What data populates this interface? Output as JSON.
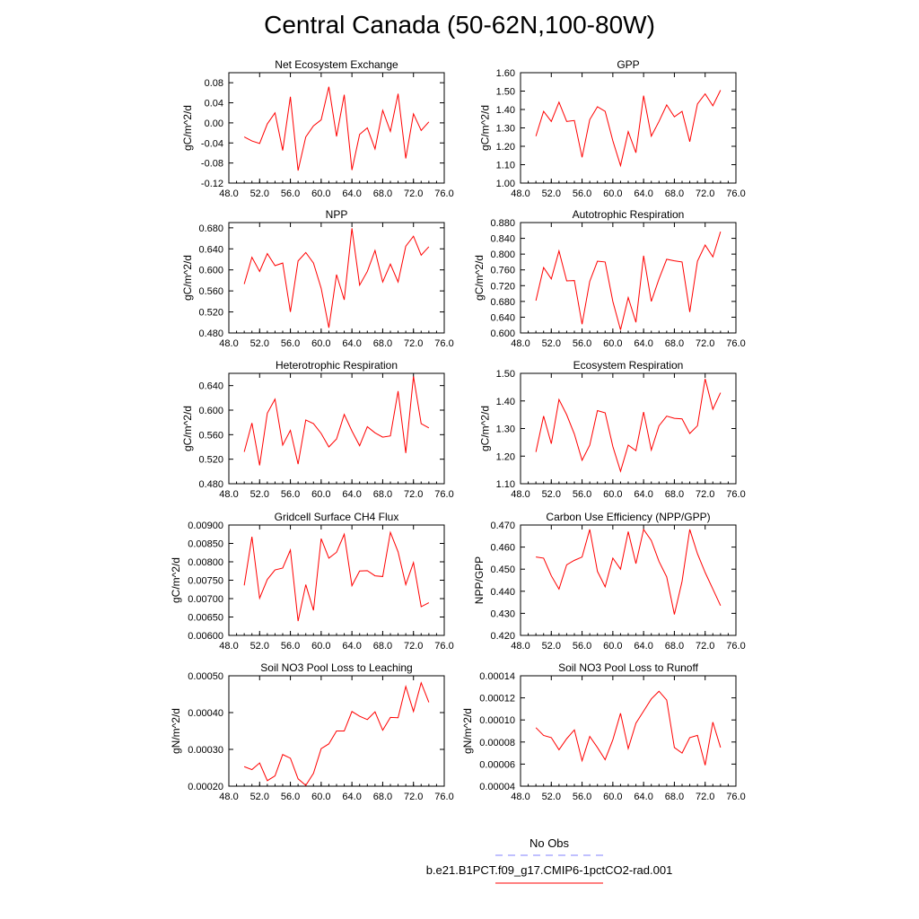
{
  "title": "Central Canada (50-62N,100-80W)",
  "legend": {
    "entries": [
      {
        "label": "No Obs",
        "color": "#8080ff",
        "style": "dashed"
      },
      {
        "label": "b.e21.B1PCT.f09_g17.CMIP6-1pctCO2-rad.001",
        "color": "#ff0000",
        "style": "solid"
      }
    ]
  },
  "chart_data": [
    {
      "type": "line",
      "title": "Net Ecosystem Exchange",
      "ylabel": "gC/m^2/d",
      "xlabel": "",
      "xlim": [
        48,
        76
      ],
      "ylim": [
        -0.12,
        0.1
      ],
      "xticks": [
        "48.0",
        "52.0",
        "56.0",
        "60.0",
        "64.0",
        "68.0",
        "72.0",
        "76.0"
      ],
      "yticks": [
        "-0.12",
        "-0.08",
        "-0.04",
        "0.00",
        "0.04",
        "0.08"
      ],
      "line_color": "#ff0000",
      "x": [
        50,
        51,
        52,
        53,
        54,
        55,
        56,
        57,
        58,
        59,
        60,
        61,
        62,
        63,
        64,
        65,
        66,
        67,
        68,
        69,
        70,
        71,
        72,
        73,
        74
      ],
      "y": [
        -0.028,
        -0.036,
        -0.041,
        -0.002,
        0.02,
        -0.055,
        0.052,
        -0.095,
        -0.028,
        -0.006,
        0.006,
        0.072,
        -0.027,
        0.056,
        -0.094,
        -0.023,
        -0.01,
        -0.052,
        0.025,
        -0.017,
        0.058,
        -0.071,
        0.018,
        -0.015,
        0.002
      ],
      "series": [
        {
          "values": [
            -0.028,
            -0.036,
            -0.041,
            -0.002,
            0.02,
            -0.055,
            0.052,
            -0.095,
            -0.028,
            -0.006,
            0.006,
            0.072,
            -0.027,
            0.056,
            -0.094,
            -0.023,
            -0.01,
            -0.052,
            0.025,
            -0.017,
            0.058,
            -0.071,
            0.018,
            -0.015,
            0.002
          ]
        }
      ],
      "grid": false
    },
    {
      "type": "line",
      "title": "GPP",
      "ylabel": "gC/m^2/d",
      "xlabel": "",
      "xlim": [
        48,
        76
      ],
      "ylim": [
        1.0,
        1.6
      ],
      "xticks": [
        "48.0",
        "52.0",
        "56.0",
        "60.0",
        "64.0",
        "68.0",
        "72.0",
        "76.0"
      ],
      "yticks": [
        "1.00",
        "1.10",
        "1.20",
        "1.30",
        "1.40",
        "1.50",
        "1.60"
      ],
      "line_color": "#ff0000",
      "x": [
        50,
        51,
        52,
        53,
        54,
        55,
        56,
        57,
        58,
        59,
        60,
        61,
        62,
        63,
        64,
        65,
        66,
        67,
        68,
        69,
        70,
        71,
        72,
        73,
        74
      ],
      "y": [
        1.255,
        1.39,
        1.335,
        1.44,
        1.335,
        1.34,
        1.14,
        1.345,
        1.415,
        1.39,
        1.23,
        1.095,
        1.28,
        1.165,
        1.475,
        1.255,
        1.335,
        1.425,
        1.36,
        1.39,
        1.225,
        1.43,
        1.485,
        1.42,
        1.505
      ],
      "series": [
        {
          "values": [
            1.255,
            1.39,
            1.335,
            1.44,
            1.335,
            1.34,
            1.14,
            1.345,
            1.415,
            1.39,
            1.23,
            1.095,
            1.28,
            1.165,
            1.475,
            1.255,
            1.335,
            1.425,
            1.36,
            1.39,
            1.225,
            1.43,
            1.485,
            1.42,
            1.505
          ]
        }
      ],
      "grid": false
    },
    {
      "type": "line",
      "title": "NPP",
      "ylabel": "gC/m^2/d",
      "xlabel": "",
      "xlim": [
        48,
        76
      ],
      "ylim": [
        0.48,
        0.69
      ],
      "xticks": [
        "48.0",
        "52.0",
        "56.0",
        "60.0",
        "64.0",
        "68.0",
        "72.0",
        "76.0"
      ],
      "yticks": [
        "0.480",
        "0.520",
        "0.560",
        "0.600",
        "0.640",
        "0.680"
      ],
      "line_color": "#ff0000",
      "x": [
        50,
        51,
        52,
        53,
        54,
        55,
        56,
        57,
        58,
        59,
        60,
        61,
        62,
        63,
        64,
        65,
        66,
        67,
        68,
        69,
        70,
        71,
        72,
        73,
        74
      ],
      "y": [
        0.573,
        0.624,
        0.597,
        0.631,
        0.608,
        0.613,
        0.52,
        0.617,
        0.633,
        0.613,
        0.565,
        0.49,
        0.591,
        0.543,
        0.679,
        0.571,
        0.597,
        0.637,
        0.577,
        0.611,
        0.577,
        0.645,
        0.664,
        0.628,
        0.644
      ],
      "series": [
        {
          "values": [
            0.573,
            0.624,
            0.597,
            0.631,
            0.608,
            0.613,
            0.52,
            0.617,
            0.633,
            0.613,
            0.565,
            0.49,
            0.591,
            0.543,
            0.679,
            0.571,
            0.597,
            0.637,
            0.577,
            0.611,
            0.577,
            0.645,
            0.664,
            0.628,
            0.644
          ]
        }
      ],
      "grid": false
    },
    {
      "type": "line",
      "title": "Autotrophic Respiration",
      "ylabel": "gC/m^2/d",
      "xlabel": "",
      "xlim": [
        48,
        76
      ],
      "ylim": [
        0.6,
        0.88
      ],
      "xticks": [
        "48.0",
        "52.0",
        "56.0",
        "60.0",
        "64.0",
        "68.0",
        "72.0",
        "76.0"
      ],
      "yticks": [
        "0.600",
        "0.640",
        "0.680",
        "0.720",
        "0.760",
        "0.800",
        "0.840",
        "0.880"
      ],
      "line_color": "#ff0000",
      "x": [
        50,
        51,
        52,
        53,
        54,
        55,
        56,
        57,
        58,
        59,
        60,
        61,
        62,
        63,
        64,
        65,
        66,
        67,
        68,
        69,
        70,
        71,
        72,
        73,
        74
      ],
      "y": [
        0.682,
        0.766,
        0.737,
        0.808,
        0.732,
        0.733,
        0.622,
        0.731,
        0.782,
        0.78,
        0.68,
        0.608,
        0.69,
        0.627,
        0.796,
        0.68,
        0.737,
        0.787,
        0.783,
        0.78,
        0.653,
        0.782,
        0.823,
        0.793,
        0.857
      ],
      "series": [
        {
          "values": [
            0.682,
            0.766,
            0.737,
            0.808,
            0.732,
            0.733,
            0.622,
            0.731,
            0.782,
            0.78,
            0.68,
            0.608,
            0.69,
            0.627,
            0.796,
            0.68,
            0.737,
            0.787,
            0.783,
            0.78,
            0.653,
            0.782,
            0.823,
            0.793,
            0.857
          ]
        }
      ],
      "grid": false
    },
    {
      "type": "line",
      "title": "Heterotrophic Respiration",
      "ylabel": "gC/m^2/d",
      "xlabel": "",
      "xlim": [
        48,
        76
      ],
      "ylim": [
        0.48,
        0.66
      ],
      "xticks": [
        "48.0",
        "52.0",
        "56.0",
        "60.0",
        "64.0",
        "68.0",
        "72.0",
        "76.0"
      ],
      "yticks": [
        "0.480",
        "0.520",
        "0.560",
        "0.600",
        "0.640"
      ],
      "line_color": "#ff0000",
      "x": [
        50,
        51,
        52,
        53,
        54,
        55,
        56,
        57,
        58,
        59,
        60,
        61,
        62,
        63,
        64,
        65,
        66,
        67,
        68,
        69,
        70,
        71,
        72,
        73,
        74
      ],
      "y": [
        0.532,
        0.579,
        0.51,
        0.595,
        0.618,
        0.543,
        0.567,
        0.512,
        0.584,
        0.578,
        0.562,
        0.54,
        0.553,
        0.593,
        0.566,
        0.542,
        0.573,
        0.563,
        0.556,
        0.558,
        0.631,
        0.53,
        0.655,
        0.578,
        0.571
      ],
      "series": [
        {
          "values": [
            0.532,
            0.579,
            0.51,
            0.595,
            0.618,
            0.543,
            0.567,
            0.512,
            0.584,
            0.578,
            0.562,
            0.54,
            0.553,
            0.593,
            0.566,
            0.542,
            0.573,
            0.563,
            0.556,
            0.558,
            0.631,
            0.53,
            0.655,
            0.578,
            0.571
          ]
        }
      ],
      "grid": false
    },
    {
      "type": "line",
      "title": "Ecosystem Respiration",
      "ylabel": "gC/m^2/d",
      "xlabel": "",
      "xlim": [
        48,
        76
      ],
      "ylim": [
        1.1,
        1.5
      ],
      "xticks": [
        "48.0",
        "52.0",
        "56.0",
        "60.0",
        "64.0",
        "68.0",
        "72.0",
        "76.0"
      ],
      "yticks": [
        "1.10",
        "1.20",
        "1.30",
        "1.40",
        "1.50"
      ],
      "line_color": "#ff0000",
      "x": [
        50,
        51,
        52,
        53,
        54,
        55,
        56,
        57,
        58,
        59,
        60,
        61,
        62,
        63,
        64,
        65,
        66,
        67,
        68,
        69,
        70,
        71,
        72,
        73,
        74
      ],
      "y": [
        1.215,
        1.345,
        1.245,
        1.405,
        1.35,
        1.28,
        1.185,
        1.24,
        1.365,
        1.357,
        1.235,
        1.145,
        1.24,
        1.22,
        1.36,
        1.222,
        1.31,
        1.345,
        1.337,
        1.335,
        1.282,
        1.31,
        1.48,
        1.37,
        1.43
      ],
      "series": [
        {
          "values": [
            1.215,
            1.345,
            1.245,
            1.405,
            1.35,
            1.28,
            1.185,
            1.24,
            1.365,
            1.357,
            1.235,
            1.145,
            1.24,
            1.22,
            1.36,
            1.222,
            1.31,
            1.345,
            1.337,
            1.335,
            1.282,
            1.31,
            1.48,
            1.37,
            1.43
          ]
        }
      ],
      "grid": false
    },
    {
      "type": "line",
      "title": "Gridcell Surface CH4 Flux",
      "ylabel": "gC/m^2/d",
      "xlabel": "",
      "xlim": [
        48,
        76
      ],
      "ylim": [
        0.006,
        0.009
      ],
      "xticks": [
        "48.0",
        "52.0",
        "56.0",
        "60.0",
        "64.0",
        "68.0",
        "72.0",
        "76.0"
      ],
      "yticks": [
        "0.00600",
        "0.00650",
        "0.00700",
        "0.00750",
        "0.00800",
        "0.00850",
        "0.00900"
      ],
      "line_color": "#ff0000",
      "x": [
        50,
        51,
        52,
        53,
        54,
        55,
        56,
        57,
        58,
        59,
        60,
        61,
        62,
        63,
        64,
        65,
        66,
        67,
        68,
        69,
        70,
        71,
        72,
        73,
        74
      ],
      "y": [
        0.00736,
        0.00868,
        0.00701,
        0.00752,
        0.00778,
        0.00783,
        0.00832,
        0.00639,
        0.00738,
        0.00668,
        0.00863,
        0.0081,
        0.00826,
        0.00875,
        0.00735,
        0.00775,
        0.00776,
        0.00762,
        0.0076,
        0.0088,
        0.00827,
        0.00738,
        0.00798,
        0.00678,
        0.00689
      ],
      "series": [
        {
          "values": [
            0.00736,
            0.00868,
            0.00701,
            0.00752,
            0.00778,
            0.00783,
            0.00832,
            0.00639,
            0.00738,
            0.00668,
            0.00863,
            0.0081,
            0.00826,
            0.00875,
            0.00735,
            0.00775,
            0.00776,
            0.00762,
            0.0076,
            0.0088,
            0.00827,
            0.00738,
            0.00798,
            0.00678,
            0.00689
          ]
        }
      ],
      "grid": false
    },
    {
      "type": "line",
      "title": "Carbon Use Efficiency (NPP/GPP)",
      "ylabel": "NPP/GPP",
      "xlabel": "",
      "xlim": [
        48,
        76
      ],
      "ylim": [
        0.42,
        0.47
      ],
      "xticks": [
        "48.0",
        "52.0",
        "56.0",
        "60.0",
        "64.0",
        "68.0",
        "72.0",
        "76.0"
      ],
      "yticks": [
        "0.420",
        "0.430",
        "0.440",
        "0.450",
        "0.460",
        "0.470"
      ],
      "line_color": "#ff0000",
      "x": [
        50,
        51,
        52,
        53,
        54,
        55,
        56,
        57,
        58,
        59,
        60,
        61,
        62,
        63,
        64,
        65,
        66,
        67,
        68,
        69,
        70,
        71,
        72,
        73,
        74
      ],
      "y": [
        0.4555,
        0.455,
        0.447,
        0.441,
        0.452,
        0.454,
        0.4555,
        0.468,
        0.449,
        0.442,
        0.455,
        0.45,
        0.467,
        0.4525,
        0.468,
        0.463,
        0.4535,
        0.4465,
        0.4295,
        0.4445,
        0.468,
        0.457,
        0.4485,
        0.441,
        0.4335
      ],
      "series": [
        {
          "values": [
            0.4555,
            0.455,
            0.447,
            0.441,
            0.452,
            0.454,
            0.4555,
            0.468,
            0.449,
            0.442,
            0.455,
            0.45,
            0.467,
            0.4525,
            0.468,
            0.463,
            0.4535,
            0.4465,
            0.4295,
            0.4445,
            0.468,
            0.457,
            0.4485,
            0.441,
            0.4335
          ]
        }
      ],
      "grid": false
    },
    {
      "type": "line",
      "title": "Soil NO3 Pool Loss to Leaching",
      "ylabel": "gN/m^2/d",
      "xlabel": "",
      "xlim": [
        48,
        76
      ],
      "ylim": [
        0.0002,
        0.0005
      ],
      "xticks": [
        "48.0",
        "52.0",
        "56.0",
        "60.0",
        "64.0",
        "68.0",
        "72.0",
        "76.0"
      ],
      "yticks": [
        "0.00020",
        "0.00030",
        "0.00040",
        "0.00050"
      ],
      "line_color": "#ff0000",
      "x": [
        50,
        51,
        52,
        53,
        54,
        55,
        56,
        57,
        58,
        59,
        60,
        61,
        62,
        63,
        64,
        65,
        66,
        67,
        68,
        69,
        70,
        71,
        72,
        73,
        74
      ],
      "y": [
        0.000253,
        0.000245,
        0.000263,
        0.000215,
        0.000228,
        0.000286,
        0.000276,
        0.00022,
        0.000202,
        0.000235,
        0.000302,
        0.000315,
        0.00035,
        0.00035,
        0.000403,
        0.00039,
        0.000381,
        0.000402,
        0.000352,
        0.000387,
        0.000386,
        0.000471,
        0.000403,
        0.000481,
        0.000428
      ],
      "series": [
        {
          "values": [
            0.000253,
            0.000245,
            0.000263,
            0.000215,
            0.000228,
            0.000286,
            0.000276,
            0.00022,
            0.000202,
            0.000235,
            0.000302,
            0.000315,
            0.00035,
            0.00035,
            0.000403,
            0.00039,
            0.000381,
            0.000402,
            0.000352,
            0.000387,
            0.000386,
            0.000471,
            0.000403,
            0.000481,
            0.000428
          ]
        }
      ],
      "grid": false
    },
    {
      "type": "line",
      "title": "Soil NO3 Pool Loss to Runoff",
      "ylabel": "gN/m^2/d",
      "xlabel": "",
      "xlim": [
        48,
        76
      ],
      "ylim": [
        4e-05,
        0.00014
      ],
      "xticks": [
        "48.0",
        "52.0",
        "56.0",
        "60.0",
        "64.0",
        "68.0",
        "72.0",
        "76.0"
      ],
      "yticks": [
        "0.00004",
        "0.00006",
        "0.00008",
        "0.00010",
        "0.00012",
        "0.00014"
      ],
      "line_color": "#ff0000",
      "x": [
        50,
        51,
        52,
        53,
        54,
        55,
        56,
        57,
        58,
        59,
        60,
        61,
        62,
        63,
        64,
        65,
        66,
        67,
        68,
        69,
        70,
        71,
        72,
        73,
        74
      ],
      "y": [
        9.3e-05,
        8.6e-05,
        8.4e-05,
        7.3e-05,
        8.3e-05,
        9.1e-05,
        6.3e-05,
        8.5e-05,
        7.5e-05,
        6.4e-05,
        8.2e-05,
        0.000106,
        7.4e-05,
        9.7e-05,
        0.000108,
        0.000119,
        0.000126,
        0.000118,
        7.5e-05,
        7e-05,
        8.4e-05,
        8.6e-05,
        5.9e-05,
        9.8e-05,
        7.5e-05
      ],
      "series": [
        {
          "values": [
            9.3e-05,
            8.6e-05,
            8.4e-05,
            7.3e-05,
            8.3e-05,
            9.1e-05,
            6.3e-05,
            8.5e-05,
            7.5e-05,
            6.4e-05,
            8.2e-05,
            0.000106,
            7.4e-05,
            9.7e-05,
            0.000108,
            0.000119,
            0.000126,
            0.000118,
            7.5e-05,
            7e-05,
            8.4e-05,
            8.6e-05,
            5.9e-05,
            9.8e-05,
            7.5e-05
          ]
        }
      ],
      "grid": false
    }
  ]
}
